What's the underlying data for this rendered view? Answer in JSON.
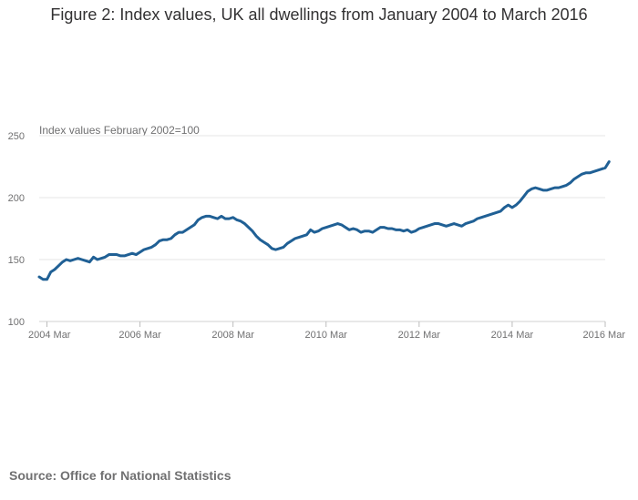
{
  "title": "Figure 2: Index values, UK all dwellings from January 2004 to March 2016",
  "source": "Source: Office for National Statistics",
  "chart_data": {
    "type": "line",
    "ylabel": "Index values February 2002=100",
    "xlabel": "",
    "ylim": [
      100,
      250
    ],
    "yticks": [
      100,
      150,
      200,
      250
    ],
    "x_start": "2004-01",
    "x_end": "2016-03",
    "xticks": [
      "2004 Mar",
      "2006 Mar",
      "2008 Mar",
      "2010 Mar",
      "2012 Mar",
      "2014 Mar",
      "2016 Mar"
    ],
    "grid": true,
    "line_color": "#206095",
    "series": [
      {
        "name": "",
        "values": [
          136,
          134,
          134,
          140,
          142,
          145,
          148,
          150,
          149,
          150,
          151,
          150,
          149,
          148,
          152,
          150,
          151,
          152,
          154,
          154,
          154,
          153,
          153,
          154,
          155,
          154,
          156,
          158,
          159,
          160,
          162,
          165,
          166,
          166,
          167,
          170,
          172,
          172,
          174,
          176,
          178,
          182,
          184,
          185,
          185,
          184,
          183,
          185,
          183,
          183,
          184,
          182,
          181,
          179,
          176,
          173,
          169,
          166,
          164,
          162,
          159,
          158,
          159,
          160,
          163,
          165,
          167,
          168,
          169,
          170,
          174,
          172,
          173,
          175,
          176,
          177,
          178,
          179,
          178,
          176,
          174,
          175,
          174,
          172,
          173,
          173,
          172,
          174,
          176,
          176,
          175,
          175,
          174,
          174,
          173,
          174,
          172,
          173,
          175,
          176,
          177,
          178,
          179,
          179,
          178,
          177,
          178,
          179,
          178,
          177,
          179,
          180,
          181,
          183,
          184,
          185,
          186,
          187,
          188,
          189,
          192,
          194,
          192,
          194,
          197,
          201,
          205,
          207,
          208,
          207,
          206,
          206,
          207,
          208,
          208,
          209,
          210,
          212,
          215,
          217,
          219,
          220,
          220,
          221,
          222,
          223,
          224,
          229
        ]
      }
    ]
  }
}
